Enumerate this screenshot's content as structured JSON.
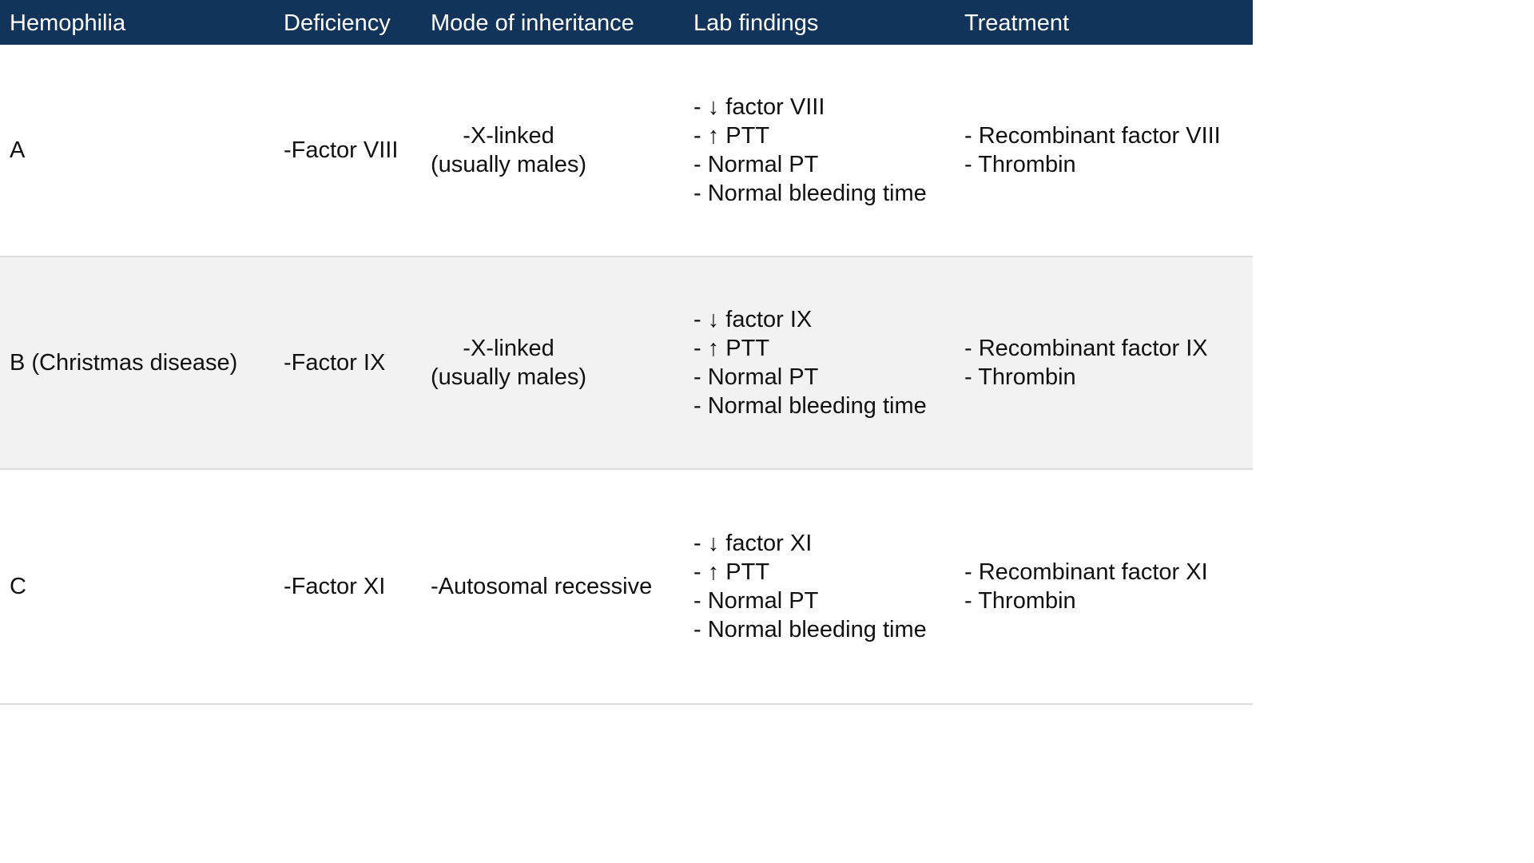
{
  "table": {
    "headers": [
      "Hemophilia",
      "Deficiency",
      "Mode of inheritance",
      "Lab findings",
      "Treatment"
    ],
    "rows": [
      {
        "hemophilia": "A",
        "deficiency": "-Factor VIII",
        "inheritance": [
          "-X-linked",
          "(usually males)"
        ],
        "lab_findings": [
          "- ↓ factor VIII",
          "- ↑ PTT",
          "- Normal PT",
          "- Normal bleeding time"
        ],
        "treatment": [
          "- Recombinant factor VIII",
          "- Thrombin"
        ]
      },
      {
        "hemophilia": "B (Christmas disease)",
        "deficiency": "-Factor IX",
        "inheritance": [
          "-X-linked",
          "(usually males)"
        ],
        "lab_findings": [
          "- ↓ factor IX",
          "- ↑ PTT",
          "- Normal PT",
          "- Normal bleeding time"
        ],
        "treatment": [
          "- Recombinant factor IX",
          "- Thrombin"
        ]
      },
      {
        "hemophilia": "C",
        "deficiency": "-Factor XI",
        "inheritance": [
          "-Autosomal recessive"
        ],
        "lab_findings": [
          "- ↓ factor XI",
          "- ↑ PTT",
          "- Normal PT",
          "- Normal bleeding time"
        ],
        "treatment": [
          "- Recombinant factor XI",
          "- Thrombin"
        ]
      }
    ]
  },
  "colors": {
    "header_background": "#12345a",
    "header_text": "#ffffff",
    "alt_row_background": "#f2f2f2",
    "row_divider": "#dcdcdc"
  }
}
